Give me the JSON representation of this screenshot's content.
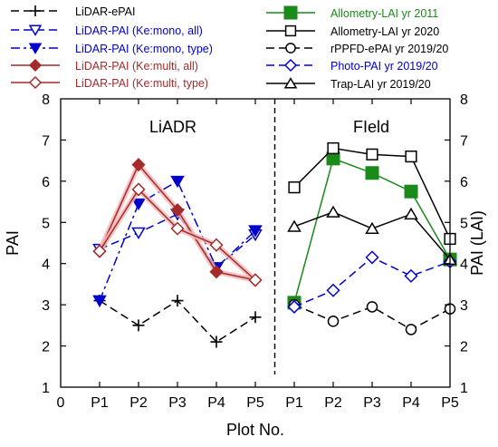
{
  "chart_data": {
    "type": "line",
    "categories": [
      "P1",
      "P2",
      "P3",
      "P4",
      "P5"
    ],
    "x_tick_labels": [
      "0",
      "P1",
      "P2",
      "P3",
      "P4",
      "P5",
      "P1",
      "P2",
      "P3",
      "P4",
      "P5"
    ],
    "xlabel": "Plot No.",
    "ylabel_left": "PAI",
    "ylabel_right": "PAI (LAI)",
    "ylim": [
      1,
      8
    ],
    "yticks": [
      "1",
      "2",
      "3",
      "4",
      "5",
      "6",
      "7",
      "8"
    ],
    "grid": false,
    "legend_placement": "top, above plot",
    "panels": [
      {
        "label": "LiADR",
        "series": [
          {
            "name": "LiDAR-ePAI",
            "color": "#000000",
            "marker": "plus",
            "dash": "dash",
            "fill": false,
            "values": [
              3.1,
              2.5,
              3.1,
              2.1,
              2.7
            ]
          },
          {
            "name": "LiDAR-PAI (Ke:mono, all)",
            "color": "#0000cc",
            "marker": "triangle-down",
            "dash": "dash",
            "fill": false,
            "values": [
              4.35,
              4.75,
              5.2,
              3.9,
              4.7
            ]
          },
          {
            "name": "LiDAR-PAI (Ke:mono, type)",
            "color": "#0000cc",
            "marker": "triangle-down",
            "dash": "dashdot",
            "fill": true,
            "values": [
              3.1,
              5.45,
              6.0,
              3.9,
              4.8
            ]
          },
          {
            "name": "LiDAR-PAI (Ke:multi, all)",
            "color": "#a52a2a",
            "marker": "diamond",
            "dash": "solid",
            "fill": true,
            "values": [
              4.3,
              6.4,
              5.3,
              3.8,
              3.6
            ]
          },
          {
            "name": "LiDAR-PAI (Ke:multi, type)",
            "color": "#a52a2a",
            "marker": "diamond",
            "dash": "solid",
            "fill": false,
            "values": [
              4.3,
              5.8,
              4.85,
              4.45,
              3.6
            ]
          }
        ]
      },
      {
        "label": "FIeld",
        "series": [
          {
            "name": "Allometry-LAI yr 2011",
            "color": "#1a8a1a",
            "marker": "square",
            "dash": "solid",
            "fill": true,
            "values": [
              3.05,
              6.55,
              6.2,
              5.75,
              4.1
            ]
          },
          {
            "name": "Allometry-LAI yr 2020",
            "color": "#000000",
            "marker": "square",
            "dash": "solid",
            "fill": false,
            "values": [
              5.85,
              6.8,
              6.65,
              6.6,
              4.6
            ]
          },
          {
            "name": "rPPFD-ePAI yr 2019/20",
            "color": "#000000",
            "marker": "circle",
            "dash": "dash",
            "fill": false,
            "values": [
              3.0,
              2.6,
              2.95,
              2.4,
              2.9
            ]
          },
          {
            "name": "Photo-PAI yr 2019/20",
            "color": "#0000cc",
            "marker": "diamond",
            "dash": "dash",
            "fill": false,
            "values": [
              2.95,
              3.35,
              4.15,
              3.7,
              4.05
            ]
          },
          {
            "name": "Trap-LAI yr 2019/20",
            "color": "#000000",
            "marker": "triangle-up",
            "dash": "solid",
            "fill": false,
            "values": [
              4.9,
              5.25,
              4.85,
              5.2,
              4.1
            ]
          }
        ]
      }
    ]
  }
}
